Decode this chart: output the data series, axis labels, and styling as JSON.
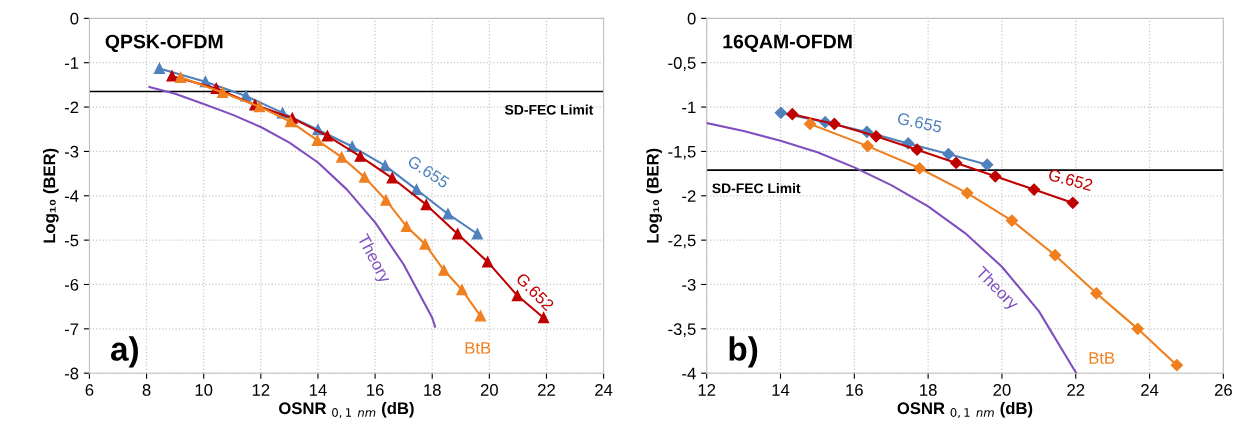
{
  "chart_data": [
    {
      "type": "line",
      "title": "QPSK-OFDM",
      "xlabel": "OSNR $_{0,1}$ $_{nm}$ (dB)",
      "ylabel": "Log₁₀ (BER)",
      "annotations": [
        "a)"
      ],
      "xlim": [
        6,
        24
      ],
      "xticks": [
        6,
        8,
        10,
        12,
        14,
        16,
        18,
        20,
        22,
        24
      ],
      "ylim": [
        -8,
        0
      ],
      "yticks": [
        {
          "value": -8,
          "label": "-8"
        },
        {
          "value": -7,
          "label": "-7"
        },
        {
          "value": -6,
          "label": "-6"
        },
        {
          "value": -5,
          "label": "-5"
        },
        {
          "value": -4,
          "label": "-4"
        },
        {
          "value": -3,
          "label": "-3"
        },
        {
          "value": -2,
          "label": "-2"
        },
        {
          "value": -1,
          "label": "-1"
        },
        0
      ],
      "grid": true,
      "legend": false,
      "line_style": "solid",
      "ref_lines": [
        {
          "axis": "y",
          "value": -1.65,
          "label": "SD-FEC Limit",
          "color": "#000000"
        }
      ],
      "series": [
        {
          "name": "G.655",
          "color": "#4f81bd",
          "marker": "triangle",
          "x": [
            8.45,
            10.06,
            11.48,
            12.76,
            14.0,
            15.2,
            16.35,
            17.45,
            18.55,
            19.58
          ],
          "values": [
            -1.13,
            -1.43,
            -1.75,
            -2.13,
            -2.51,
            -2.89,
            -3.32,
            -3.86,
            -4.41,
            -4.86
          ]
        },
        {
          "name": "G.652",
          "color": "#c00000",
          "marker": "triangle",
          "x": [
            8.89,
            10.44,
            11.79,
            13.1,
            14.33,
            15.48,
            16.6,
            17.79,
            18.89,
            19.94,
            20.98,
            21.9
          ],
          "values": [
            -1.3,
            -1.58,
            -1.95,
            -2.25,
            -2.65,
            -3.11,
            -3.6,
            -4.2,
            -4.86,
            -5.49,
            -6.25,
            -6.75
          ]
        },
        {
          "name": "BtB",
          "color": "#f07f1f",
          "marker": "triangle",
          "x": [
            9.19,
            10.66,
            11.95,
            13.04,
            13.98,
            14.83,
            15.63,
            16.38,
            17.1,
            17.75,
            18.41,
            19.04,
            19.69
          ],
          "values": [
            -1.33,
            -1.67,
            -1.99,
            -2.33,
            -2.75,
            -3.13,
            -3.58,
            -4.1,
            -4.69,
            -5.09,
            -5.68,
            -6.12,
            -6.71
          ]
        },
        {
          "name": "Theory",
          "color": "#7f4fbf",
          "marker": "none",
          "x": [
            8.1,
            9,
            10,
            11,
            12,
            13,
            14,
            15,
            16,
            17,
            18,
            18.1
          ],
          "values": [
            -1.55,
            -1.7,
            -1.93,
            -2.17,
            -2.45,
            -2.8,
            -3.25,
            -3.85,
            -4.6,
            -5.55,
            -6.75,
            -6.95
          ]
        }
      ]
    },
    {
      "type": "line",
      "title": "16QAM-OFDM",
      "xlabel": "OSNR $_{0,1}$ $_{nm}$ (dB)",
      "ylabel": "Log₁₀ (BER)",
      "annotations": [
        "b)"
      ],
      "xlim": [
        12,
        26
      ],
      "xticks": [
        12,
        14,
        16,
        18,
        20,
        22,
        24,
        26
      ],
      "ylim": [
        -4,
        0
      ],
      "yticks": [
        {
          "value": -4,
          "label": "-4"
        },
        {
          "value": -3.5,
          "label": "-3,5"
        },
        {
          "value": -3,
          "label": "-3"
        },
        {
          "value": -2.5,
          "label": "-2,5"
        },
        {
          "value": -2,
          "label": "-2"
        },
        {
          "value": -1.5,
          "label": "-1,5"
        },
        {
          "value": -1,
          "label": "-1"
        },
        {
          "value": -0.5,
          "label": "-0,5"
        },
        0
      ],
      "grid": true,
      "legend": false,
      "line_style": "solid",
      "ref_lines": [
        {
          "axis": "y",
          "value": -1.71,
          "label": "SD-FEC Limit",
          "color": "#000000"
        }
      ],
      "series": [
        {
          "name": "G.655",
          "color": "#4f81bd",
          "marker": "diamond",
          "x": [
            14.01,
            15.21,
            16.34,
            17.46,
            18.55,
            19.6
          ],
          "values": [
            -1.065,
            -1.17,
            -1.28,
            -1.41,
            -1.53,
            -1.65
          ]
        },
        {
          "name": "G.652",
          "color": "#c00000",
          "marker": "diamond",
          "x": [
            14.32,
            15.46,
            16.59,
            17.7,
            18.76,
            19.82,
            20.87,
            21.92
          ],
          "values": [
            -1.08,
            -1.19,
            -1.33,
            -1.48,
            -1.63,
            -1.78,
            -1.93,
            -2.08
          ]
        },
        {
          "name": "BtB",
          "color": "#f07f1f",
          "marker": "diamond",
          "x": [
            14.8,
            16.36,
            17.77,
            19.06,
            20.27,
            21.44,
            22.56,
            23.68,
            24.74
          ],
          "values": [
            -1.19,
            -1.44,
            -1.69,
            -1.97,
            -2.28,
            -2.67,
            -3.1,
            -3.5,
            -3.91
          ]
        },
        {
          "name": "Theory",
          "color": "#7f4fbf",
          "marker": "none",
          "x": [
            12,
            13,
            14,
            15,
            16,
            17,
            18,
            19,
            20,
            21,
            22
          ],
          "values": [
            -1.18,
            -1.27,
            -1.38,
            -1.51,
            -1.68,
            -1.88,
            -2.12,
            -2.42,
            -2.8,
            -3.3,
            -3.99
          ]
        }
      ]
    }
  ]
}
